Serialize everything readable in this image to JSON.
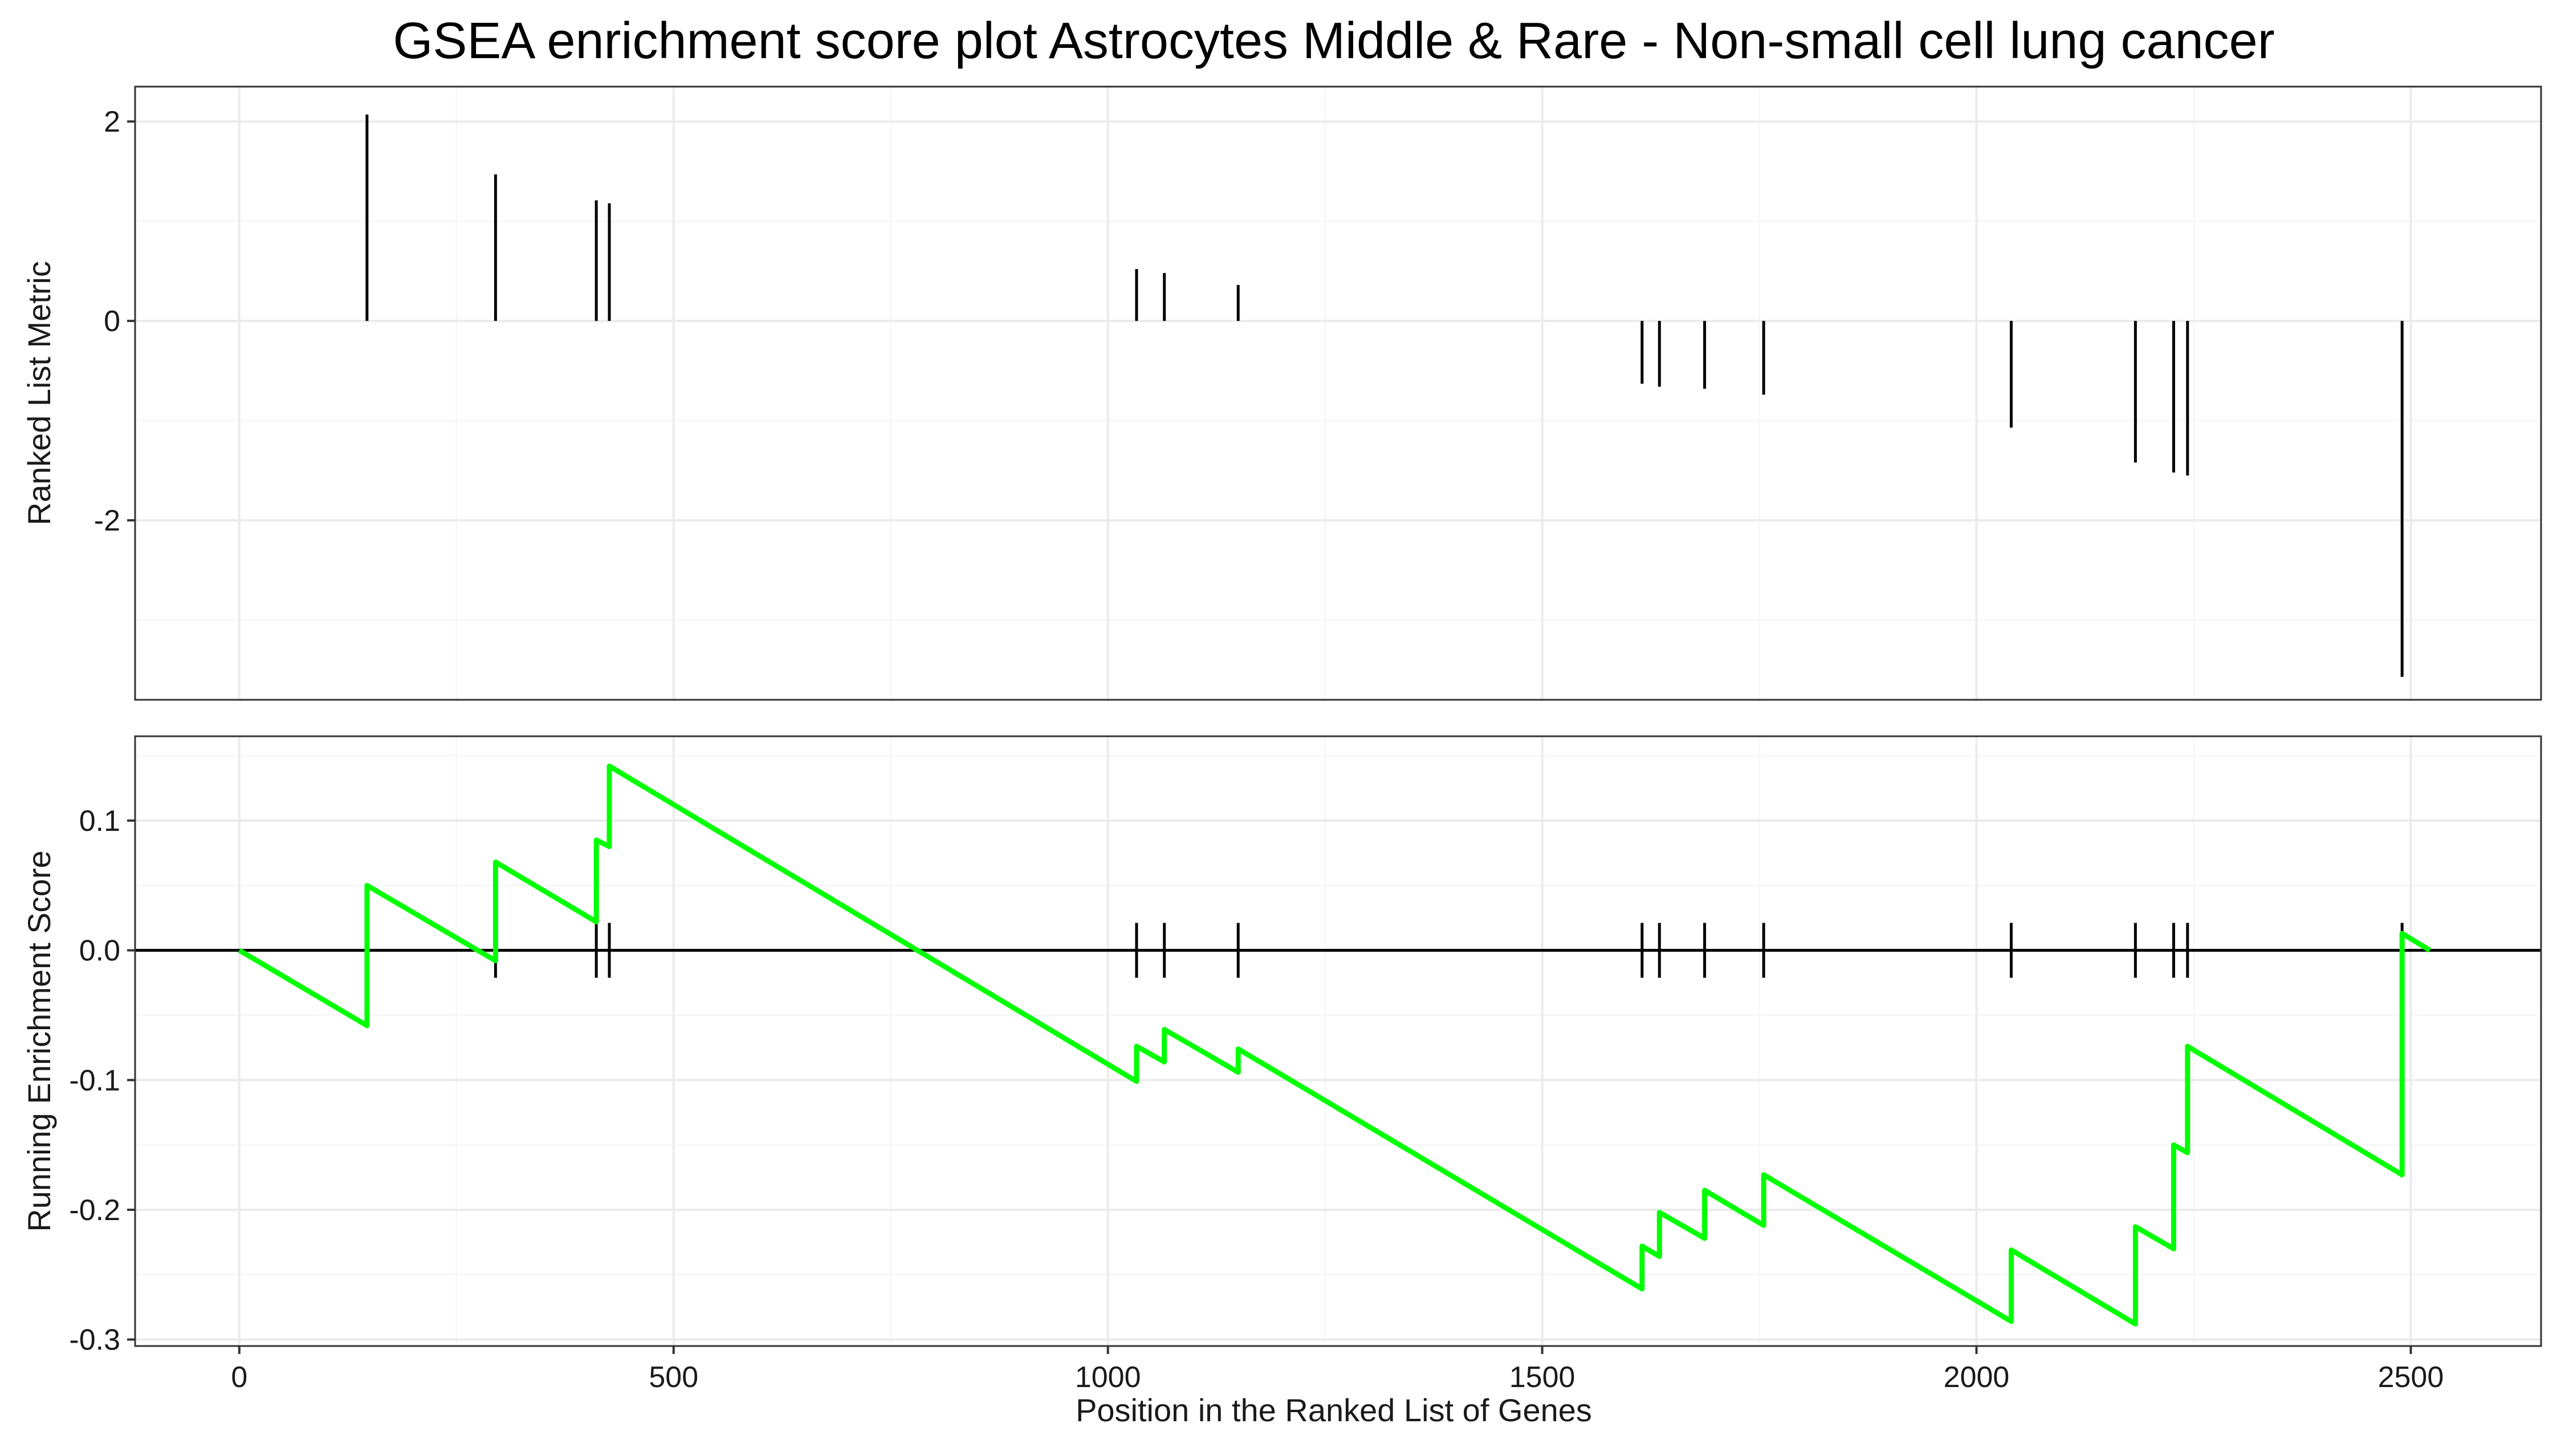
{
  "chart_data": {
    "type": "line",
    "title": "GSEA enrichment score plot Astrocytes Middle & Rare - Non-small cell lung cancer",
    "xlabel": "Position in the Ranked List of Genes",
    "xlim": [
      -120,
      2650
    ],
    "x_ticks": [
      0,
      500,
      1000,
      1500,
      2000,
      2500
    ],
    "x_tick_labels": [
      "0",
      "500",
      "1000",
      "1500",
      "2000",
      "2500"
    ],
    "panels": [
      {
        "name": "ranked-metric",
        "ylabel": "Ranked List Metric",
        "type": "bar",
        "ylim": [
          -3.8,
          2.35
        ],
        "y_ticks": [
          -2,
          0,
          2
        ],
        "y_tick_labels": [
          "-2",
          "0",
          "2"
        ],
        "grid": true,
        "bars": [
          {
            "x": 147,
            "y": 2.07
          },
          {
            "x": 295,
            "y": 1.47
          },
          {
            "x": 411,
            "y": 1.21
          },
          {
            "x": 426,
            "y": 1.18
          },
          {
            "x": 1033,
            "y": 0.52
          },
          {
            "x": 1065,
            "y": 0.48
          },
          {
            "x": 1150,
            "y": 0.36
          },
          {
            "x": 1615,
            "y": -0.63
          },
          {
            "x": 1635,
            "y": -0.66
          },
          {
            "x": 1687,
            "y": -0.68
          },
          {
            "x": 1755,
            "y": -0.74
          },
          {
            "x": 2040,
            "y": -1.07
          },
          {
            "x": 2183,
            "y": -1.42
          },
          {
            "x": 2227,
            "y": -1.52
          },
          {
            "x": 2243,
            "y": -1.55
          },
          {
            "x": 2490,
            "y": -3.57
          }
        ]
      },
      {
        "name": "running-es",
        "ylabel": "Running Enrichment Score",
        "type": "line",
        "ylim": [
          -0.305,
          0.165
        ],
        "y_ticks": [
          -0.3,
          -0.2,
          -0.1,
          0.0,
          0.1
        ],
        "y_tick_labels": [
          "-0.3",
          "-0.2",
          "-0.1",
          "0.0",
          "0.1"
        ],
        "grid": true,
        "line_color": "#00ff00",
        "hit_positions": [
          147,
          295,
          411,
          426,
          1033,
          1065,
          1150,
          1615,
          1635,
          1687,
          1755,
          2040,
          2183,
          2227,
          2243,
          2490
        ],
        "series": [
          {
            "x": [
              0,
              147,
              147,
              295,
              295,
              411,
              411,
              426,
              426,
              1033,
              1033,
              1065,
              1065,
              1150,
              1150,
              1615,
              1615,
              1635,
              1635,
              1687,
              1687,
              1755,
              1755,
              2040,
              2040,
              2183,
              2183,
              2227,
              2227,
              2243,
              2243,
              2490,
              2490,
              2522
            ],
            "y": [
              0.0,
              -0.058,
              0.05,
              -0.008,
              0.068,
              0.022,
              0.085,
              0.08,
              0.142,
              -0.101,
              -0.074,
              -0.086,
              -0.061,
              -0.094,
              -0.076,
              -0.261,
              -0.228,
              -0.236,
              -0.202,
              -0.222,
              -0.185,
              -0.212,
              -0.173,
              -0.286,
              -0.231,
              -0.288,
              -0.213,
              -0.23,
              -0.15,
              -0.156,
              -0.074,
              -0.173,
              0.013,
              0.0
            ]
          }
        ]
      }
    ]
  }
}
